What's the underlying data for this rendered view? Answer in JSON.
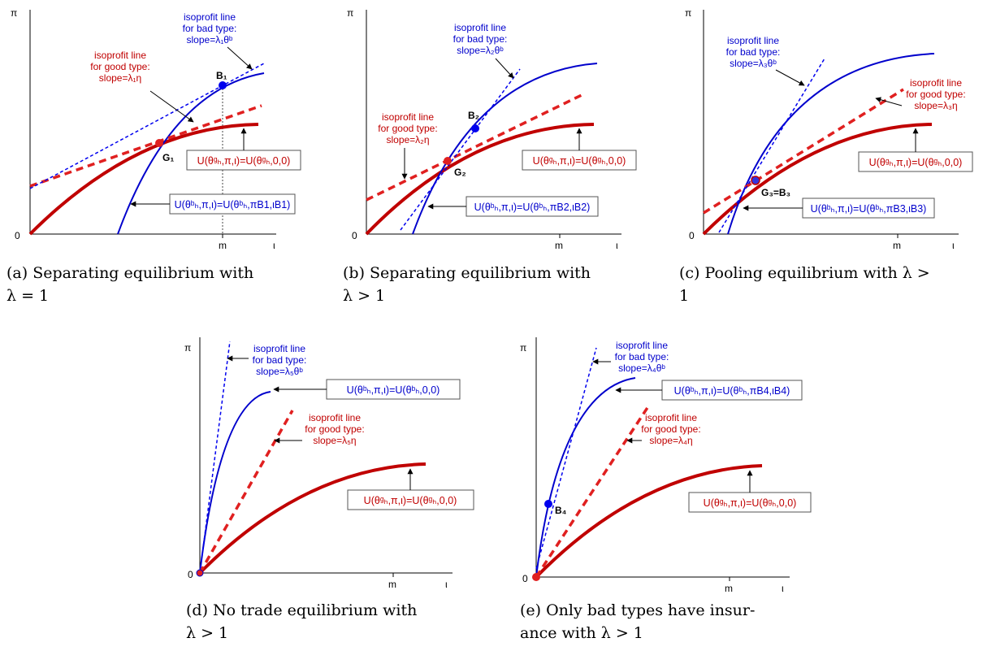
{
  "colors": {
    "red": "#c00000",
    "blue": "#0000cc",
    "dashRed": "#e02020",
    "dashBlue": "#0000ee"
  },
  "axis": {
    "y": "π",
    "origin": "0",
    "tick": "m",
    "x": "ι"
  },
  "panels": [
    {
      "id": "a",
      "caption": [
        "(a) Separating equilibrium with",
        "λ = 1"
      ],
      "bad_note": [
        "isoprofit line",
        "for bad type:",
        "slope=λ₁θᵇ"
      ],
      "good_note": [
        "isoprofit line",
        "for good type:",
        "slope=λ₁η"
      ],
      "good_box": "U(θᵍₕ,π,ι)=U(θᵍₕ,0,0)",
      "bad_box": "U(θᵇₕ,π,ι)=U(θᵇₕ,πB1,ιB1)",
      "b_point": "B₁",
      "g_point": "G₁"
    },
    {
      "id": "b",
      "caption": [
        "(b) Separating equilibrium with",
        "λ > 1"
      ],
      "bad_note": [
        "isoprofit line",
        "for bad type:",
        "slope=λ₂θᵇ"
      ],
      "good_note": [
        "isoprofit line",
        "for good type:",
        "slope=λ₂η"
      ],
      "good_box": "U(θᵍₕ,π,ι)=U(θᵍₕ,0,0)",
      "bad_box": "U(θᵇₕ,π,ι)=U(θᵇₕ,πB2,ιB2)",
      "b_point": "B₂",
      "g_point": "G₂"
    },
    {
      "id": "c",
      "caption": [
        "(c) Pooling equilibrium with λ >",
        "1"
      ],
      "bad_note": [
        "isoprofit line",
        "for bad type:",
        "slope=λ₃θᵇ"
      ],
      "good_note": [
        "isoprofit line",
        "for good type:",
        "slope=λ₃η"
      ],
      "good_box": "U(θᵍₕ,π,ι)=U(θᵍₕ,0,0)",
      "bad_box": "U(θᵇₕ,π,ι)=U(θᵇₕ,πB3,ιB3)",
      "g_point": "G₃=B₃"
    },
    {
      "id": "d",
      "caption": [
        "(d) No trade equilibrium with",
        "λ > 1"
      ],
      "bad_note": [
        "isoprofit line",
        "for bad type:",
        "slope=λ₅θᵇ"
      ],
      "good_note": [
        "isoprofit line",
        "for good type:",
        "slope=λ₅η"
      ],
      "good_box": "U(θᵍₕ,π,ι)=U(θᵍₕ,0,0)",
      "bad_box": "U(θᵇₕ,π,ι)=U(θᵇₕ,0,0)"
    },
    {
      "id": "e",
      "caption": [
        "(e) Only bad types have insur-",
        "ance with λ > 1"
      ],
      "bad_note": [
        "isoprofit line",
        "for bad type:",
        "slope=λ₄θᵇ"
      ],
      "good_note": [
        "isoprofit line",
        "for good type:",
        "slope=λ₄η"
      ],
      "good_box": "U(θᵍₕ,π,ι)=U(θᵍₕ,0,0)",
      "bad_box": "U(θᵇₕ,π,ι)=U(θᵇₕ,πB4,ιB4)",
      "b_point": "B₄"
    }
  ]
}
